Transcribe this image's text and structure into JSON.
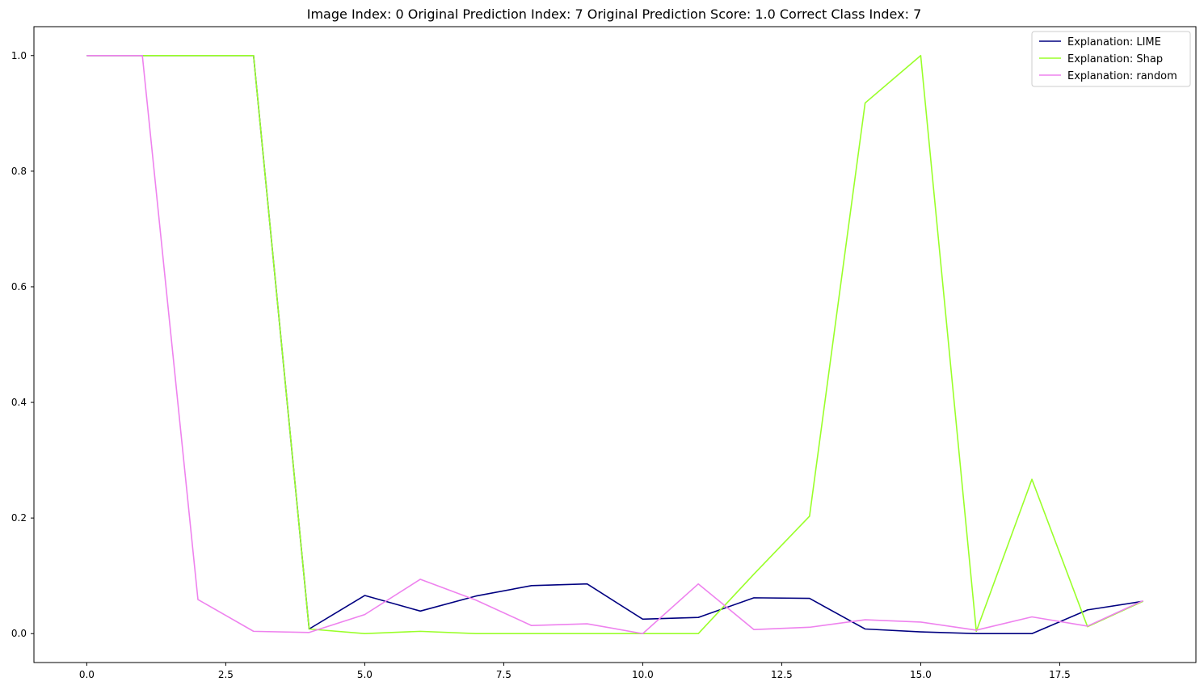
{
  "chart_data": {
    "type": "line",
    "title": "Image Index: 0 Original Prediction Index: 7 Original Prediction Score: 1.0 Correct Class Index: 7",
    "xlabel": "",
    "ylabel": "",
    "x": [
      0,
      1,
      2,
      3,
      4,
      5,
      6,
      7,
      8,
      9,
      10,
      11,
      12,
      13,
      14,
      15,
      16,
      17,
      18,
      19
    ],
    "xlim": [
      -0.95,
      19.95
    ],
    "ylim": [
      -0.05,
      1.05
    ],
    "xticks": [
      0.0,
      2.5,
      5.0,
      7.5,
      10.0,
      12.5,
      15.0,
      17.5
    ],
    "xtick_labels": [
      "0.0",
      "2.5",
      "5.0",
      "7.5",
      "10.0",
      "12.5",
      "15.0",
      "17.5"
    ],
    "yticks": [
      0.0,
      0.2,
      0.4,
      0.6,
      0.8,
      1.0
    ],
    "ytick_labels": [
      "0.0",
      "0.2",
      "0.4",
      "0.6",
      "0.8",
      "1.0"
    ],
    "grid": false,
    "legend_position": "top-right",
    "series": [
      {
        "name": "Explanation: LIME",
        "color": "#000080",
        "values": [
          1.0,
          1.0,
          1.0,
          1.0,
          0.008,
          0.066,
          0.039,
          0.065,
          0.083,
          0.086,
          0.025,
          0.028,
          0.062,
          0.061,
          0.008,
          0.003,
          0.0,
          0.0,
          0.041,
          0.056
        ]
      },
      {
        "name": "Explanation: Shap",
        "color": "#9AFF2A",
        "values": [
          1.0,
          1.0,
          1.0,
          1.0,
          0.008,
          0.0,
          0.004,
          0.0,
          0.0,
          0.0,
          0.0,
          0.0,
          0.103,
          0.203,
          0.918,
          1.0,
          0.004,
          0.267,
          0.012,
          0.056
        ]
      },
      {
        "name": "Explanation: random",
        "color": "#EE82EE",
        "values": [
          1.0,
          1.0,
          0.059,
          0.004,
          0.002,
          0.033,
          0.094,
          0.058,
          0.014,
          0.017,
          0.0,
          0.086,
          0.007,
          0.011,
          0.024,
          0.02,
          0.006,
          0.029,
          0.013,
          0.057
        ]
      }
    ]
  }
}
